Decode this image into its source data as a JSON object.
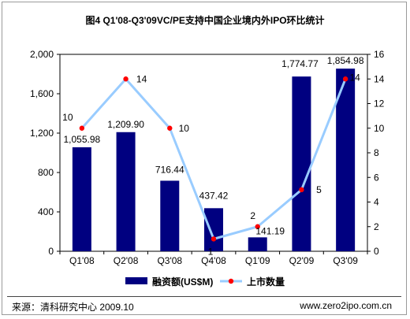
{
  "chart_data": {
    "type": "bar+line",
    "title": "图4  Q1'08-Q3'09VC/PE支持中国企业境内外IPO环比统计",
    "categories": [
      "Q1'08",
      "Q2'08",
      "Q3'08",
      "Q4'08",
      "Q1'09",
      "Q2'09",
      "Q3'09"
    ],
    "series": [
      {
        "name": "融资额(US$M)",
        "type": "bar",
        "axis": "left",
        "values": [
          1055.98,
          1209.9,
          716.44,
          437.42,
          141.19,
          1774.77,
          1854.98
        ],
        "labels": [
          "1,055.98",
          "1,209.90",
          "716.44",
          "437.42",
          "141.19",
          "1,774.77",
          "1,854.98"
        ],
        "color": "#000080"
      },
      {
        "name": "上市数量",
        "type": "line",
        "axis": "right",
        "values": [
          10,
          14,
          10,
          1,
          2,
          5,
          14
        ],
        "labels": [
          "10",
          "14",
          "10",
          "1",
          "2",
          "5",
          "14"
        ],
        "line_color": "#99ccff",
        "marker_color": "#ff0000"
      }
    ],
    "y_left": {
      "min": 0,
      "max": 2000,
      "ticks": [
        0,
        400,
        800,
        1200,
        1600,
        2000
      ],
      "tick_labels": [
        "0",
        "400",
        "800",
        "1,200",
        "1,600",
        "2,000"
      ]
    },
    "y_right": {
      "min": 0,
      "max": 16,
      "ticks": [
        0,
        2,
        4,
        6,
        8,
        10,
        12,
        14,
        16
      ],
      "tick_labels": [
        "0",
        "2",
        "4",
        "6",
        "8",
        "10",
        "12",
        "14",
        "16"
      ]
    },
    "grid": false,
    "legend": "bottom"
  },
  "footer": {
    "source": "来源：清科研究中心 2009.10",
    "site": "www.zero2ipo.com.cn"
  }
}
